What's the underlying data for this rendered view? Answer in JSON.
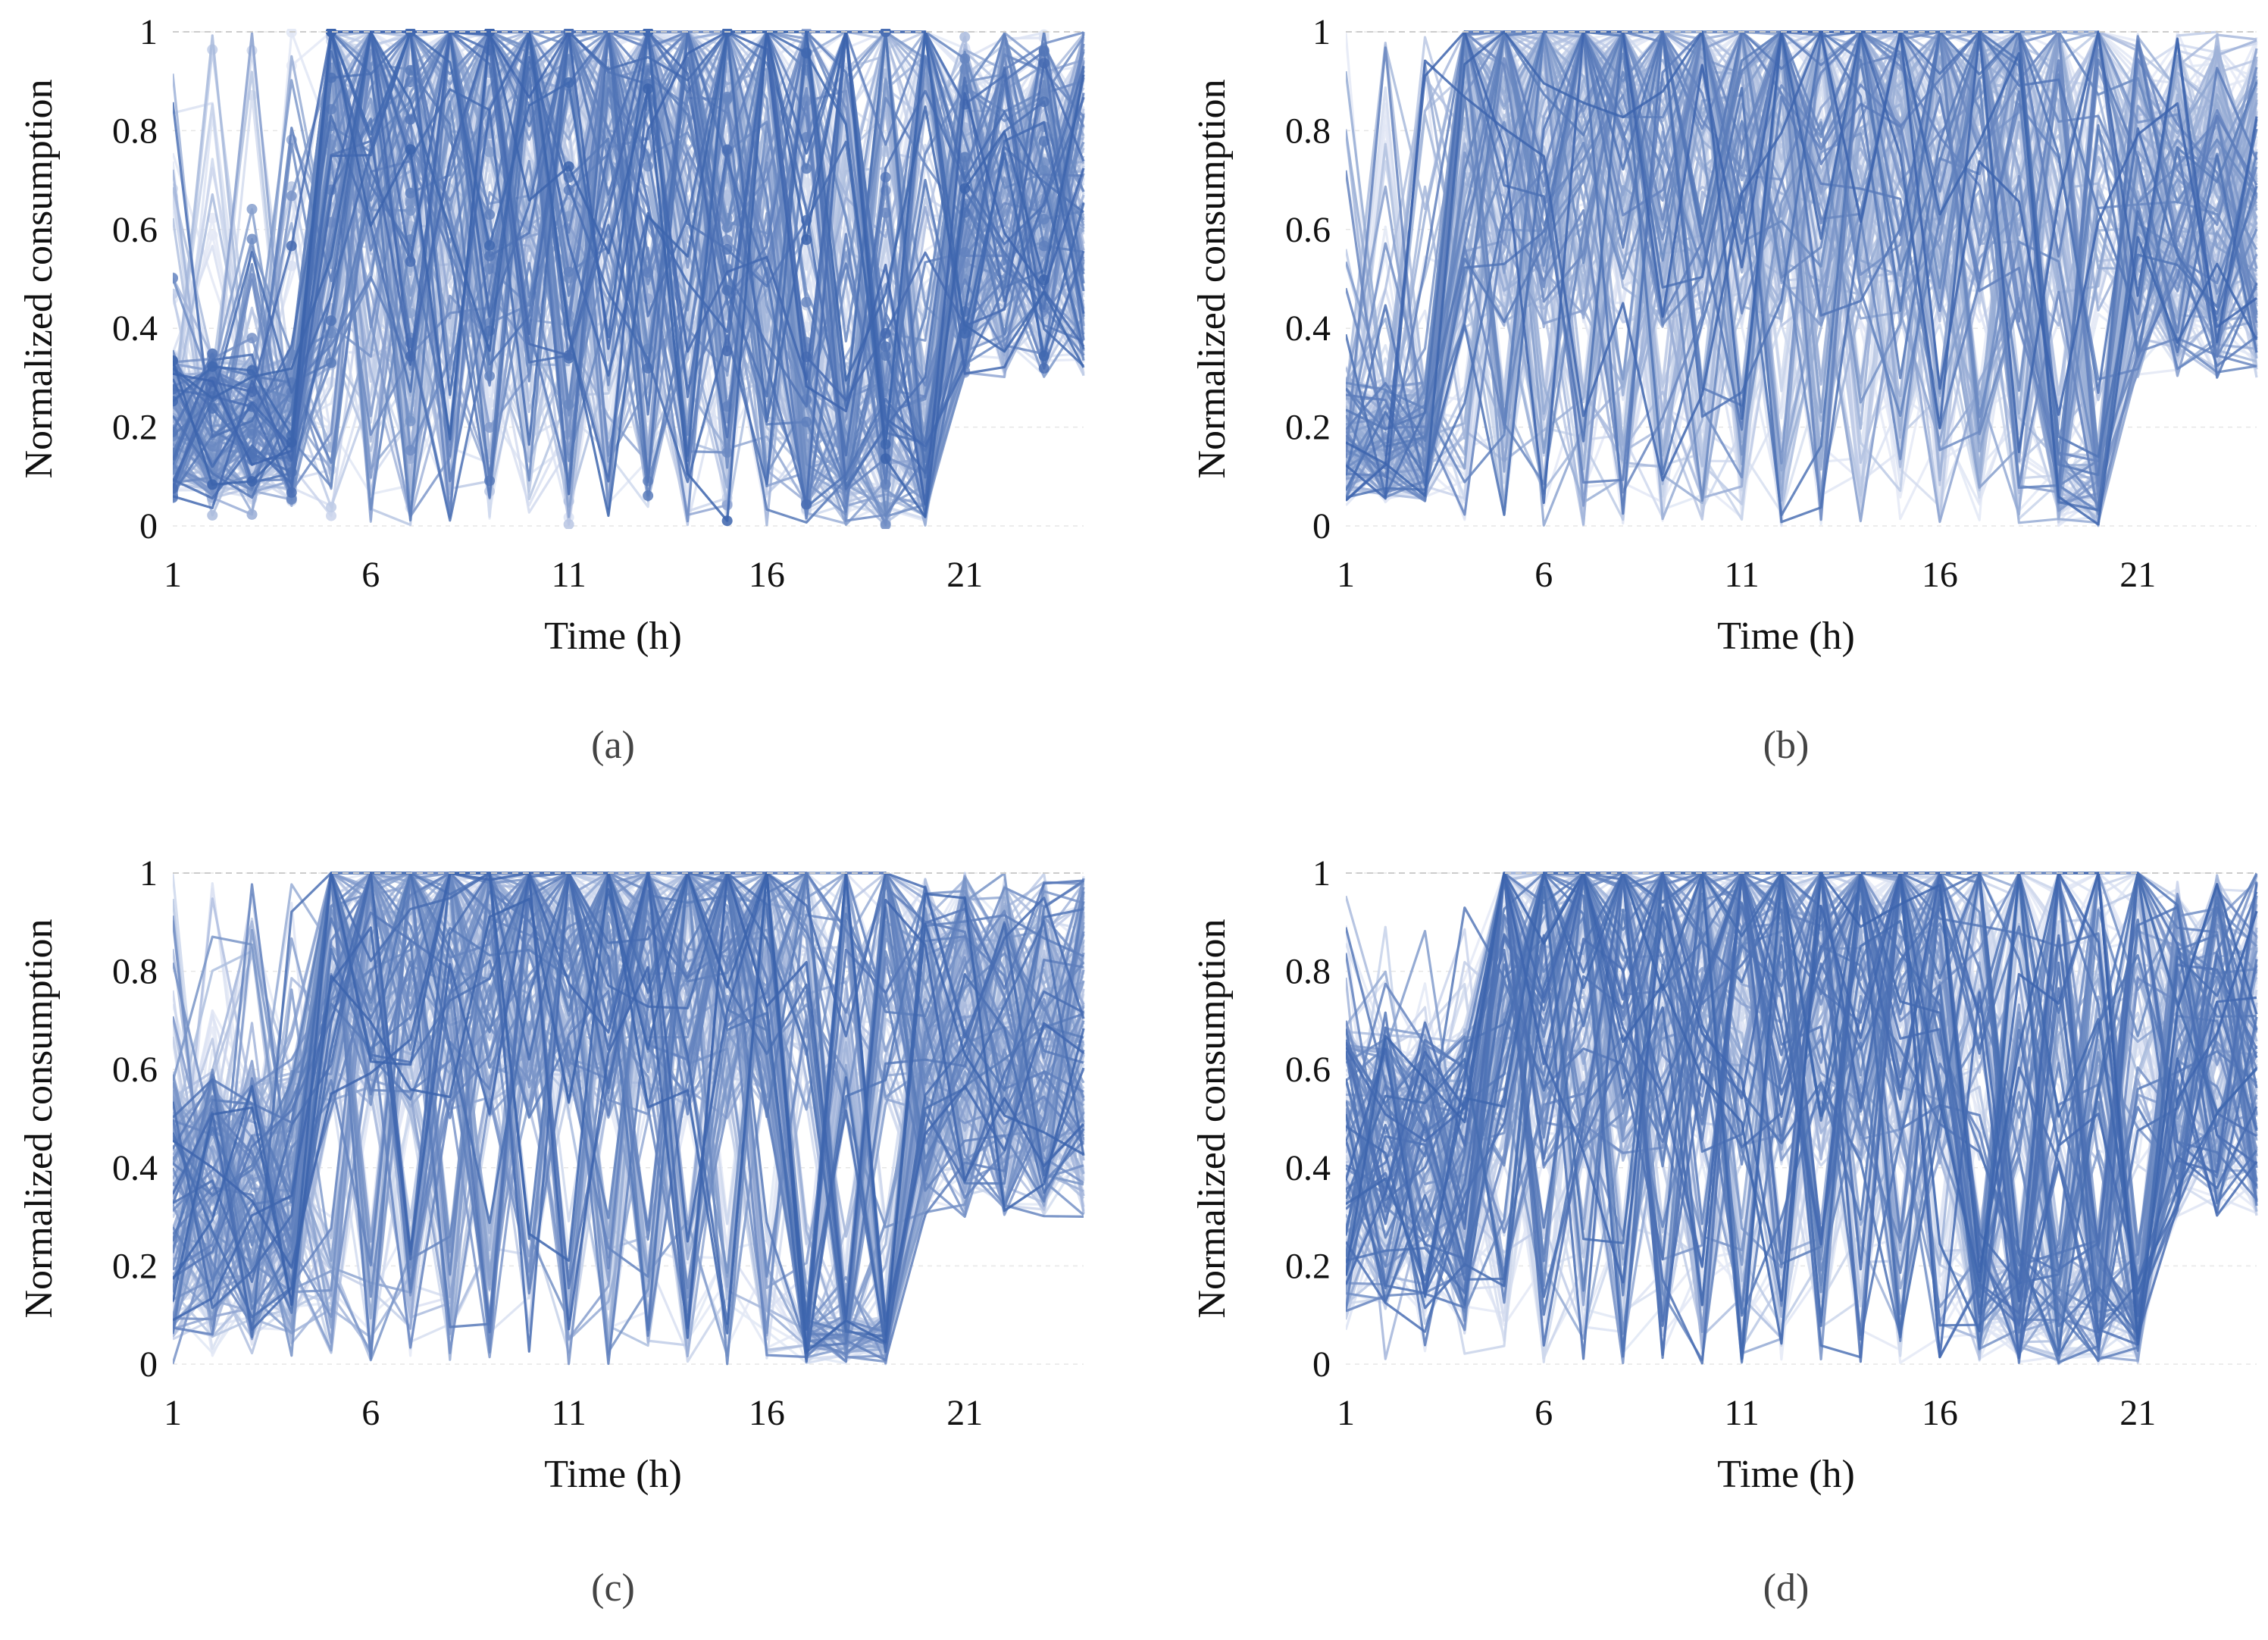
{
  "figure": {
    "panels": [
      "a",
      "b",
      "c",
      "d"
    ]
  },
  "chart_data": [
    {
      "id": "a",
      "type": "line",
      "caption": "(a)",
      "xlabel": "Time (h)",
      "ylabel": "Normalized consumption",
      "xlim": [
        1,
        24
      ],
      "ylim": [
        0,
        1
      ],
      "xticks": [
        1,
        6,
        11,
        16,
        21
      ],
      "yticks": [
        0,
        0.2,
        0.4,
        0.6,
        0.8,
        1
      ],
      "ytick_labels": [
        "0",
        "0.2",
        "0.4",
        "0.6",
        "0.8",
        "1"
      ],
      "grid": true,
      "legend": "none",
      "markers": true,
      "color_dark": "#3b63ad",
      "color_light": "#e4e9f6",
      "series_count": 220,
      "profile": {
        "night_low": [
          0.05,
          0.35
        ],
        "morning_rise_hour": 4.5,
        "day_level": [
          0.3,
          1.0
        ],
        "evening_dip_hours": [
          17,
          20
        ],
        "evening_dip_level": [
          0.0,
          0.3
        ],
        "late_level": [
          0.3,
          1.0
        ]
      }
    },
    {
      "id": "b",
      "type": "line",
      "caption": "(b)",
      "xlabel": "Time (h)",
      "ylabel": "Normalized consumption",
      "xlim": [
        1,
        24
      ],
      "ylim": [
        0,
        1
      ],
      "xticks": [
        1,
        6,
        11,
        16,
        21
      ],
      "yticks": [
        0,
        0.2,
        0.4,
        0.6,
        0.8,
        1
      ],
      "ytick_labels": [
        "0",
        "0.2",
        "0.4",
        "0.6",
        "0.8",
        "1"
      ],
      "grid": true,
      "legend": "none",
      "markers": false,
      "color_dark": "#3b63ad",
      "color_light": "#e4e9f6",
      "series_count": 220,
      "profile": {
        "night_low": [
          0.05,
          0.3
        ],
        "morning_rise_hour": 4.0,
        "day_level": [
          0.4,
          1.0
        ],
        "evening_dip_hours": [
          19,
          20
        ],
        "evening_dip_level": [
          0.0,
          0.15
        ],
        "late_level": [
          0.3,
          1.0
        ]
      }
    },
    {
      "id": "c",
      "type": "line",
      "caption": "(c)",
      "xlabel": "Time (h)",
      "ylabel": "Normalized consumption",
      "xlim": [
        1,
        24
      ],
      "ylim": [
        0,
        1
      ],
      "xticks": [
        1,
        6,
        11,
        16,
        21
      ],
      "yticks": [
        0,
        0.2,
        0.4,
        0.6,
        0.8,
        1
      ],
      "ytick_labels": [
        "0",
        "0.2",
        "0.4",
        "0.6",
        "0.8",
        "1"
      ],
      "grid": true,
      "legend": "none",
      "markers": false,
      "color_dark": "#3b63ad",
      "color_light": "#e4e9f6",
      "series_count": 220,
      "profile": {
        "night_low": [
          0.05,
          0.6
        ],
        "morning_rise_hour": 4.5,
        "day_level": [
          0.5,
          1.0
        ],
        "evening_dip_hours": [
          17,
          19
        ],
        "evening_dip_level": [
          0.0,
          0.1
        ],
        "late_level": [
          0.3,
          1.0
        ]
      }
    },
    {
      "id": "d",
      "type": "line",
      "caption": "(d)",
      "xlabel": "Time (h)",
      "ylabel": "Normalized consumption",
      "xlim": [
        1,
        24
      ],
      "ylim": [
        0,
        1
      ],
      "xticks": [
        1,
        6,
        11,
        16,
        21
      ],
      "yticks": [
        0,
        0.2,
        0.4,
        0.6,
        0.8,
        1
      ],
      "ytick_labels": [
        "0",
        "0.2",
        "0.4",
        "0.6",
        "0.8",
        "1"
      ],
      "grid": true,
      "legend": "none",
      "markers": false,
      "color_dark": "#3b63ad",
      "color_light": "#e4e9f6",
      "series_count": 220,
      "profile": {
        "night_low": [
          0.1,
          0.7
        ],
        "morning_rise_hour": 5.0,
        "day_level": [
          0.4,
          1.0
        ],
        "evening_dip_hours": [
          17,
          21
        ],
        "evening_dip_level": [
          0.0,
          0.25
        ],
        "late_level": [
          0.3,
          1.0
        ]
      }
    }
  ]
}
